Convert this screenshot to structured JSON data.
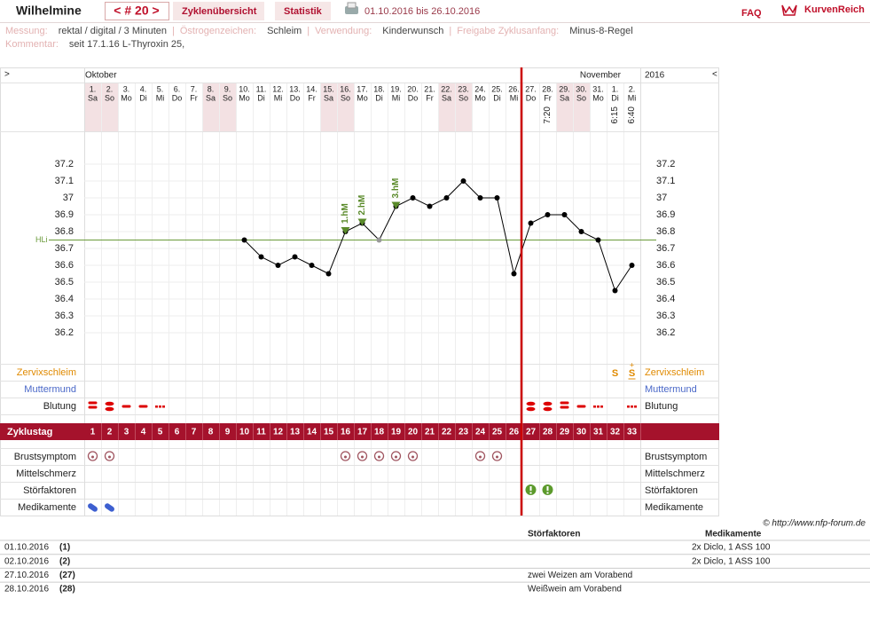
{
  "header": {
    "name": "Wilhelmine",
    "cycle": "< # 20 >",
    "tabs": [
      "Zyklenübersicht",
      "Statistik"
    ],
    "range": "01.10.2016 bis 26.10.2016",
    "faq": "FAQ",
    "logo": "KurvenReich"
  },
  "info": {
    "separator": "|",
    "lines": [
      [
        {
          "label": "Messung:",
          "value": "rektal / digital / 3 Minuten"
        },
        {
          "label": "Östrogenzeichen:",
          "value": "Schleim"
        },
        {
          "label": "Verwendung:",
          "value": "Kinderwunsch"
        },
        {
          "label": "Freigabe Zyklusanfang:",
          "value": "Minus-8-Regel"
        }
      ],
      [
        {
          "label": "Kommentar:",
          "value": "seit 17.1.16 L-Thyroxin 25,"
        }
      ]
    ]
  },
  "chart_data": {
    "type": "line",
    "nav": [
      ">",
      "<"
    ],
    "months": [
      "Oktober",
      "November"
    ],
    "year": "2016",
    "dates": [
      "1.",
      "2.",
      "3.",
      "4.",
      "5.",
      "6.",
      "7.",
      "8.",
      "9.",
      "10.",
      "11.",
      "12.",
      "13.",
      "14.",
      "15.",
      "16.",
      "17.",
      "18.",
      "19.",
      "20.",
      "21.",
      "22.",
      "23.",
      "24.",
      "25.",
      "26.",
      "27.",
      "28.",
      "29.",
      "30.",
      "31.",
      "1.",
      "2."
    ],
    "weekdays": [
      "Sa",
      "So",
      "Mo",
      "Di",
      "Mi",
      "Do",
      "Fr",
      "Sa",
      "So",
      "Mo",
      "Di",
      "Mi",
      "Do",
      "Fr",
      "Sa",
      "So",
      "Mo",
      "Di",
      "Mi",
      "Do",
      "Fr",
      "Sa",
      "So",
      "Mo",
      "Di",
      "Mi",
      "Do",
      "Fr",
      "Sa",
      "So",
      "Mo",
      "Di",
      "Mi"
    ],
    "times": [
      null,
      null,
      null,
      null,
      null,
      null,
      null,
      null,
      null,
      null,
      null,
      null,
      null,
      null,
      null,
      null,
      null,
      null,
      null,
      null,
      null,
      null,
      null,
      null,
      null,
      null,
      null,
      "7:20",
      null,
      null,
      null,
      "6:15",
      "6:40"
    ],
    "weekend_days": [
      1,
      2,
      8,
      9,
      15,
      16,
      22,
      23,
      29,
      30
    ],
    "weekend_color": "#f3e1e3",
    "cycle_days": [
      1,
      2,
      3,
      4,
      5,
      6,
      7,
      8,
      9,
      10,
      11,
      12,
      13,
      14,
      15,
      16,
      17,
      18,
      19,
      20,
      21,
      22,
      23,
      24,
      25,
      26,
      27,
      28,
      29,
      30,
      31,
      32,
      33
    ],
    "values": [
      null,
      null,
      null,
      null,
      null,
      null,
      null,
      null,
      null,
      36.75,
      36.65,
      36.6,
      36.65,
      36.6,
      36.55,
      36.8,
      36.85,
      36.75,
      36.95,
      37,
      36.95,
      37,
      37.1,
      37,
      37,
      36.55,
      36.85,
      36.9,
      36.9,
      36.8,
      36.75,
      36.45,
      36.6
    ],
    "color": "#000000",
    "excluded_days": [
      18
    ],
    "excluded_color": "#999999",
    "ylim": [
      36.0,
      37.4
    ],
    "yticks": [
      36.2,
      36.3,
      36.4,
      36.5,
      36.6,
      36.7,
      36.8,
      36.9,
      37,
      37.1,
      37.2
    ],
    "grid": true,
    "cover_line": {
      "value": 36.75,
      "label": "HLi",
      "color": "#6a9a3a"
    },
    "annotations": [
      {
        "day": 16,
        "label": "1.hM"
      },
      {
        "day": 17,
        "label": "2.hM"
      },
      {
        "day": 19,
        "label": "3.hM"
      }
    ],
    "annotation_color": "#5a8a2a",
    "divider_day": 27,
    "divider_color": "#cc0000",
    "row_labels": {
      "cervix": "Zervixschleim",
      "os": "Muttermund",
      "bleeding": "Blutung",
      "cycle_day": "Zyklustag",
      "breast": "Brustsymptom",
      "mittelschmerz": "Mittelschmerz",
      "disturbances": "Störfaktoren",
      "medication": "Medikamente"
    },
    "cervix_marks": [
      {
        "day": 32,
        "label": "S"
      },
      {
        "day": 33,
        "label": "S",
        "sup": "+"
      }
    ],
    "bleeding": [
      3,
      4,
      2,
      2,
      1,
      null,
      null,
      null,
      null,
      null,
      null,
      null,
      null,
      null,
      null,
      null,
      null,
      null,
      null,
      null,
      null,
      null,
      null,
      null,
      null,
      null,
      4,
      4,
      3,
      2,
      1,
      null,
      1
    ],
    "breast_days": [
      1,
      2,
      16,
      17,
      18,
      19,
      20,
      24,
      25
    ],
    "disturbance_days": [
      27,
      28
    ],
    "medication_days": [
      1,
      2
    ]
  },
  "copyright": "© http://www.nfp-forum.de",
  "notes": {
    "headers": [
      "Störfaktoren",
      "Medikamente"
    ],
    "rows": [
      {
        "date": "01.10.2016",
        "day": "(1)",
        "disturbance": null,
        "medication": "2x Diclo, 1 ASS 100"
      },
      {
        "date": "02.10.2016",
        "day": "(2)",
        "disturbance": null,
        "medication": "2x Diclo, 1 ASS 100"
      },
      {
        "date": "27.10.2016",
        "day": "(27)",
        "disturbance": "zwei Weizen am Vorabend",
        "medication": null
      },
      {
        "date": "28.10.2016",
        "day": "(28)",
        "disturbance": "Weißwein am Vorabend",
        "medication": null
      }
    ]
  }
}
